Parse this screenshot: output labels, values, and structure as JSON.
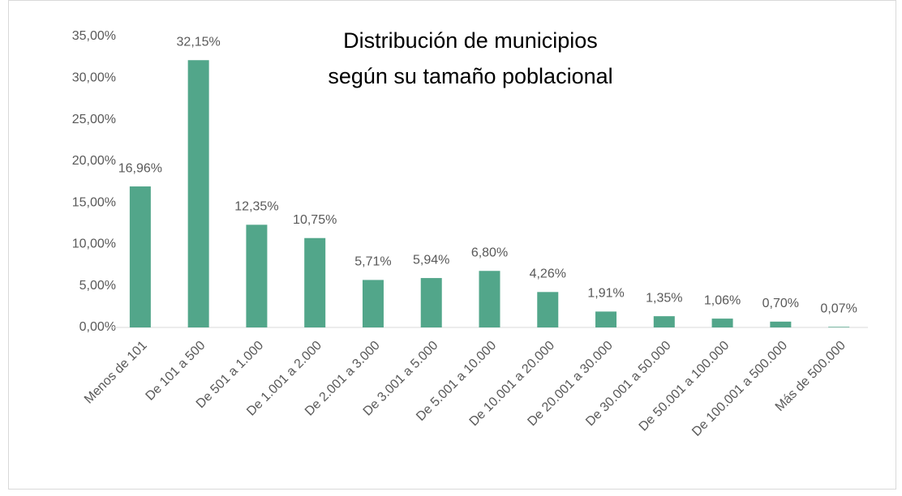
{
  "chart_data": {
    "type": "bar",
    "title": [
      "Distribución de municipios",
      "según su tamaño poblacional"
    ],
    "categories": [
      "Menos de 101",
      "De 101 a 500",
      "De 501 a 1.000",
      "De 1.001 a 2.000",
      "De 2.001 a 3.000",
      "De 3.001 a 5.000",
      "De 5.001 a 10.000",
      "De 10.001 a 20.000",
      "De 20.001 a 30.000",
      "De 30.001 a 50.000",
      "De 50.001 a 100.000",
      "De 100.001 a 500.000",
      "Más de 500.000"
    ],
    "values": [
      16.96,
      32.15,
      12.35,
      10.75,
      5.71,
      5.94,
      6.8,
      4.26,
      1.91,
      1.35,
      1.06,
      0.7,
      0.07
    ],
    "value_labels": [
      "16,96%",
      "32,15%",
      "12,35%",
      "10,75%",
      "5,71%",
      "5,94%",
      "6,80%",
      "4,26%",
      "1,91%",
      "1,35%",
      "1,06%",
      "0,70%",
      "0,07%"
    ],
    "color": "#52a68a",
    "ylim": [
      0,
      35
    ],
    "yticks": [
      {
        "value": 0,
        "label": "0,00%"
      },
      {
        "value": 5,
        "label": "5,00%"
      },
      {
        "value": 10,
        "label": "10,00%"
      },
      {
        "value": 15,
        "label": "15,00%"
      },
      {
        "value": 20,
        "label": "20,00%"
      },
      {
        "value": 25,
        "label": "25,00%"
      },
      {
        "value": 30,
        "label": "30,00%"
      },
      {
        "value": 35,
        "label": "35,00%"
      }
    ],
    "grid": false
  }
}
